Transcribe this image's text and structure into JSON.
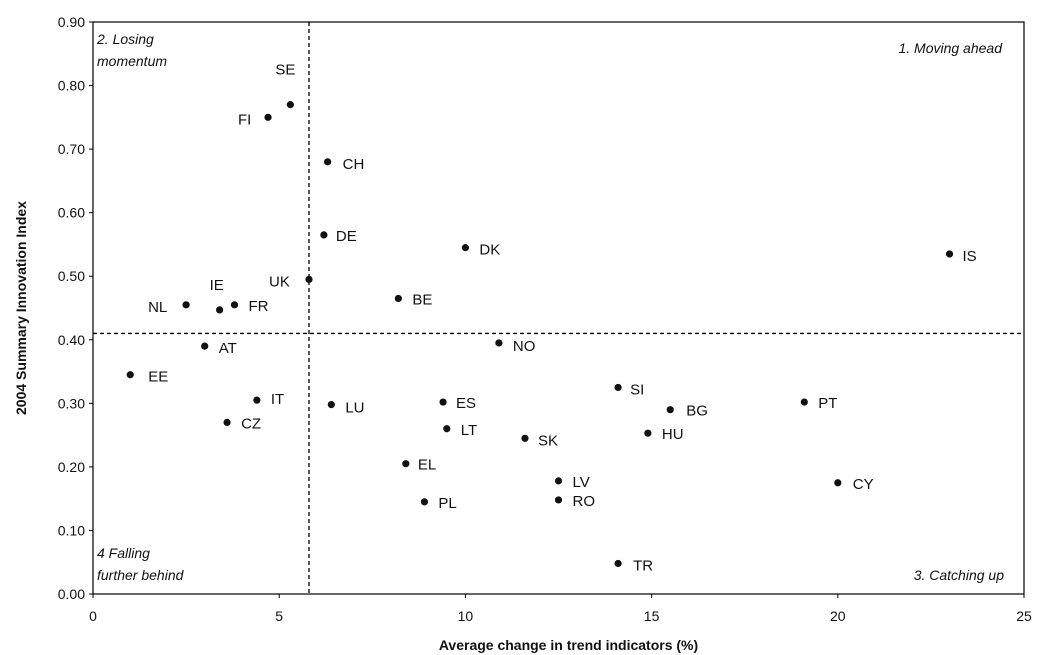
{
  "chart_data": {
    "type": "scatter",
    "xlabel": "Average change in trend indicators (%)",
    "ylabel": "2004 Summary Innovation Index",
    "xlim": [
      0,
      25
    ],
    "ylim": [
      0,
      0.9
    ],
    "x_ticks": [
      "0",
      "5",
      "10",
      "15",
      "20",
      "25"
    ],
    "y_ticks": [
      "0.00",
      "0.10",
      "0.20",
      "0.30",
      "0.40",
      "0.50",
      "0.60",
      "0.70",
      "0.80",
      "0.90"
    ],
    "grid": false,
    "reference_lines": {
      "x": 5.8,
      "y": 0.41
    },
    "quadrant_labels": {
      "q1": "1. Moving ahead",
      "q2": [
        "2. Losing",
        "momentum"
      ],
      "q3": "3. Catching up",
      "q4": [
        "4 Falling",
        "further behind"
      ]
    },
    "points": [
      {
        "label": "SE",
        "x": 5.3,
        "y": 0.77
      },
      {
        "label": "FI",
        "x": 4.7,
        "y": 0.75
      },
      {
        "label": "CH",
        "x": 6.3,
        "y": 0.68
      },
      {
        "label": "DE",
        "x": 6.2,
        "y": 0.565
      },
      {
        "label": "DK",
        "x": 10.0,
        "y": 0.545
      },
      {
        "label": "IS",
        "x": 23.0,
        "y": 0.535
      },
      {
        "label": "UK",
        "x": 5.8,
        "y": 0.495
      },
      {
        "label": "BE",
        "x": 8.2,
        "y": 0.465
      },
      {
        "label": "NL",
        "x": 2.5,
        "y": 0.455
      },
      {
        "label": "FR",
        "x": 3.8,
        "y": 0.455
      },
      {
        "label": "IE",
        "x": 3.4,
        "y": 0.447
      },
      {
        "label": "NO",
        "x": 10.9,
        "y": 0.395
      },
      {
        "label": "AT",
        "x": 3.0,
        "y": 0.39
      },
      {
        "label": "EE",
        "x": 1.0,
        "y": 0.345
      },
      {
        "label": "SI",
        "x": 14.1,
        "y": 0.325
      },
      {
        "label": "IT",
        "x": 4.4,
        "y": 0.305
      },
      {
        "label": "PT",
        "x": 19.1,
        "y": 0.302
      },
      {
        "label": "ES",
        "x": 9.4,
        "y": 0.302
      },
      {
        "label": "LU",
        "x": 6.4,
        "y": 0.298
      },
      {
        "label": "BG",
        "x": 15.5,
        "y": 0.29
      },
      {
        "label": "CZ",
        "x": 3.6,
        "y": 0.27
      },
      {
        "label": "LT",
        "x": 9.5,
        "y": 0.26
      },
      {
        "label": "HU",
        "x": 14.9,
        "y": 0.253
      },
      {
        "label": "SK",
        "x": 11.6,
        "y": 0.245
      },
      {
        "label": "EL",
        "x": 8.4,
        "y": 0.205
      },
      {
        "label": "LV",
        "x": 12.5,
        "y": 0.178
      },
      {
        "label": "CY",
        "x": 20.0,
        "y": 0.175
      },
      {
        "label": "RO",
        "x": 12.5,
        "y": 0.148
      },
      {
        "label": "PL",
        "x": 8.9,
        "y": 0.145
      },
      {
        "label": "TR",
        "x": 14.1,
        "y": 0.048
      }
    ]
  }
}
